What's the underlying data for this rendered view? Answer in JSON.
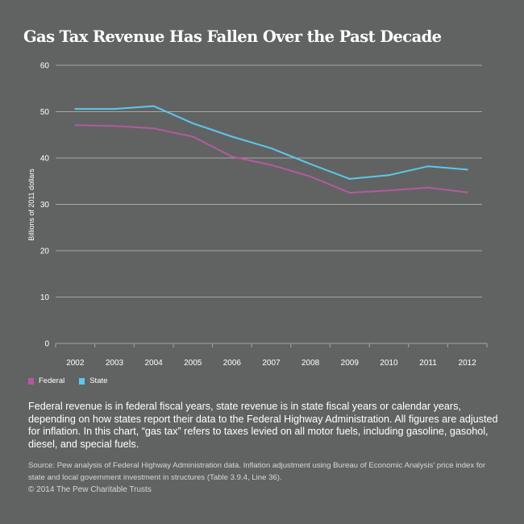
{
  "chart_data": {
    "type": "line",
    "title": "Gas Tax Revenue Has Fallen Over the Past Decade",
    "xlabel": "",
    "ylabel": "Billions of 2011 dollars",
    "ylim": [
      0,
      60
    ],
    "yticks": [
      0,
      10,
      20,
      30,
      40,
      50,
      60
    ],
    "grid": true,
    "legend_position": "bottom-left",
    "categories": [
      "2002",
      "2003",
      "2004",
      "2005",
      "2006",
      "2007",
      "2008",
      "2009",
      "2010",
      "2011",
      "2012"
    ],
    "series": [
      {
        "name": "Federal",
        "color": "#b35a9e",
        "values": [
          47.1,
          46.9,
          46.4,
          44.6,
          40.3,
          38.5,
          36.0,
          32.5,
          33.0,
          33.6,
          32.6
        ]
      },
      {
        "name": "State",
        "color": "#5bc8ee",
        "values": [
          50.6,
          50.6,
          51.2,
          47.5,
          44.6,
          42.1,
          38.7,
          35.5,
          36.3,
          38.2,
          37.5
        ]
      }
    ]
  },
  "colors": {
    "background": "#616362",
    "grid": "#a5a7a6",
    "federal": "#b35a9e",
    "state": "#5bc8ee"
  },
  "legend": {
    "federal": "Federal",
    "state": "State"
  },
  "note": "Federal revenue is in federal fiscal years, state revenue is in state fiscal years or calendar years, depending on how states report their data to the Federal Highway Administration. All figures are adjusted for inflation. In this chart, “gas tax” refers to taxes levied on all motor fuels, including gasoline, gasohol, diesel, and special fuels.",
  "source": "Source: Pew analysis of Federal Highway Administration data. Inflation adjustment using Bureau of Economic Analysis’ price index for state and local government investment in structures (Table 3.9.4, Line 36).",
  "copyright": "© 2014 The Pew Charitable Trusts"
}
